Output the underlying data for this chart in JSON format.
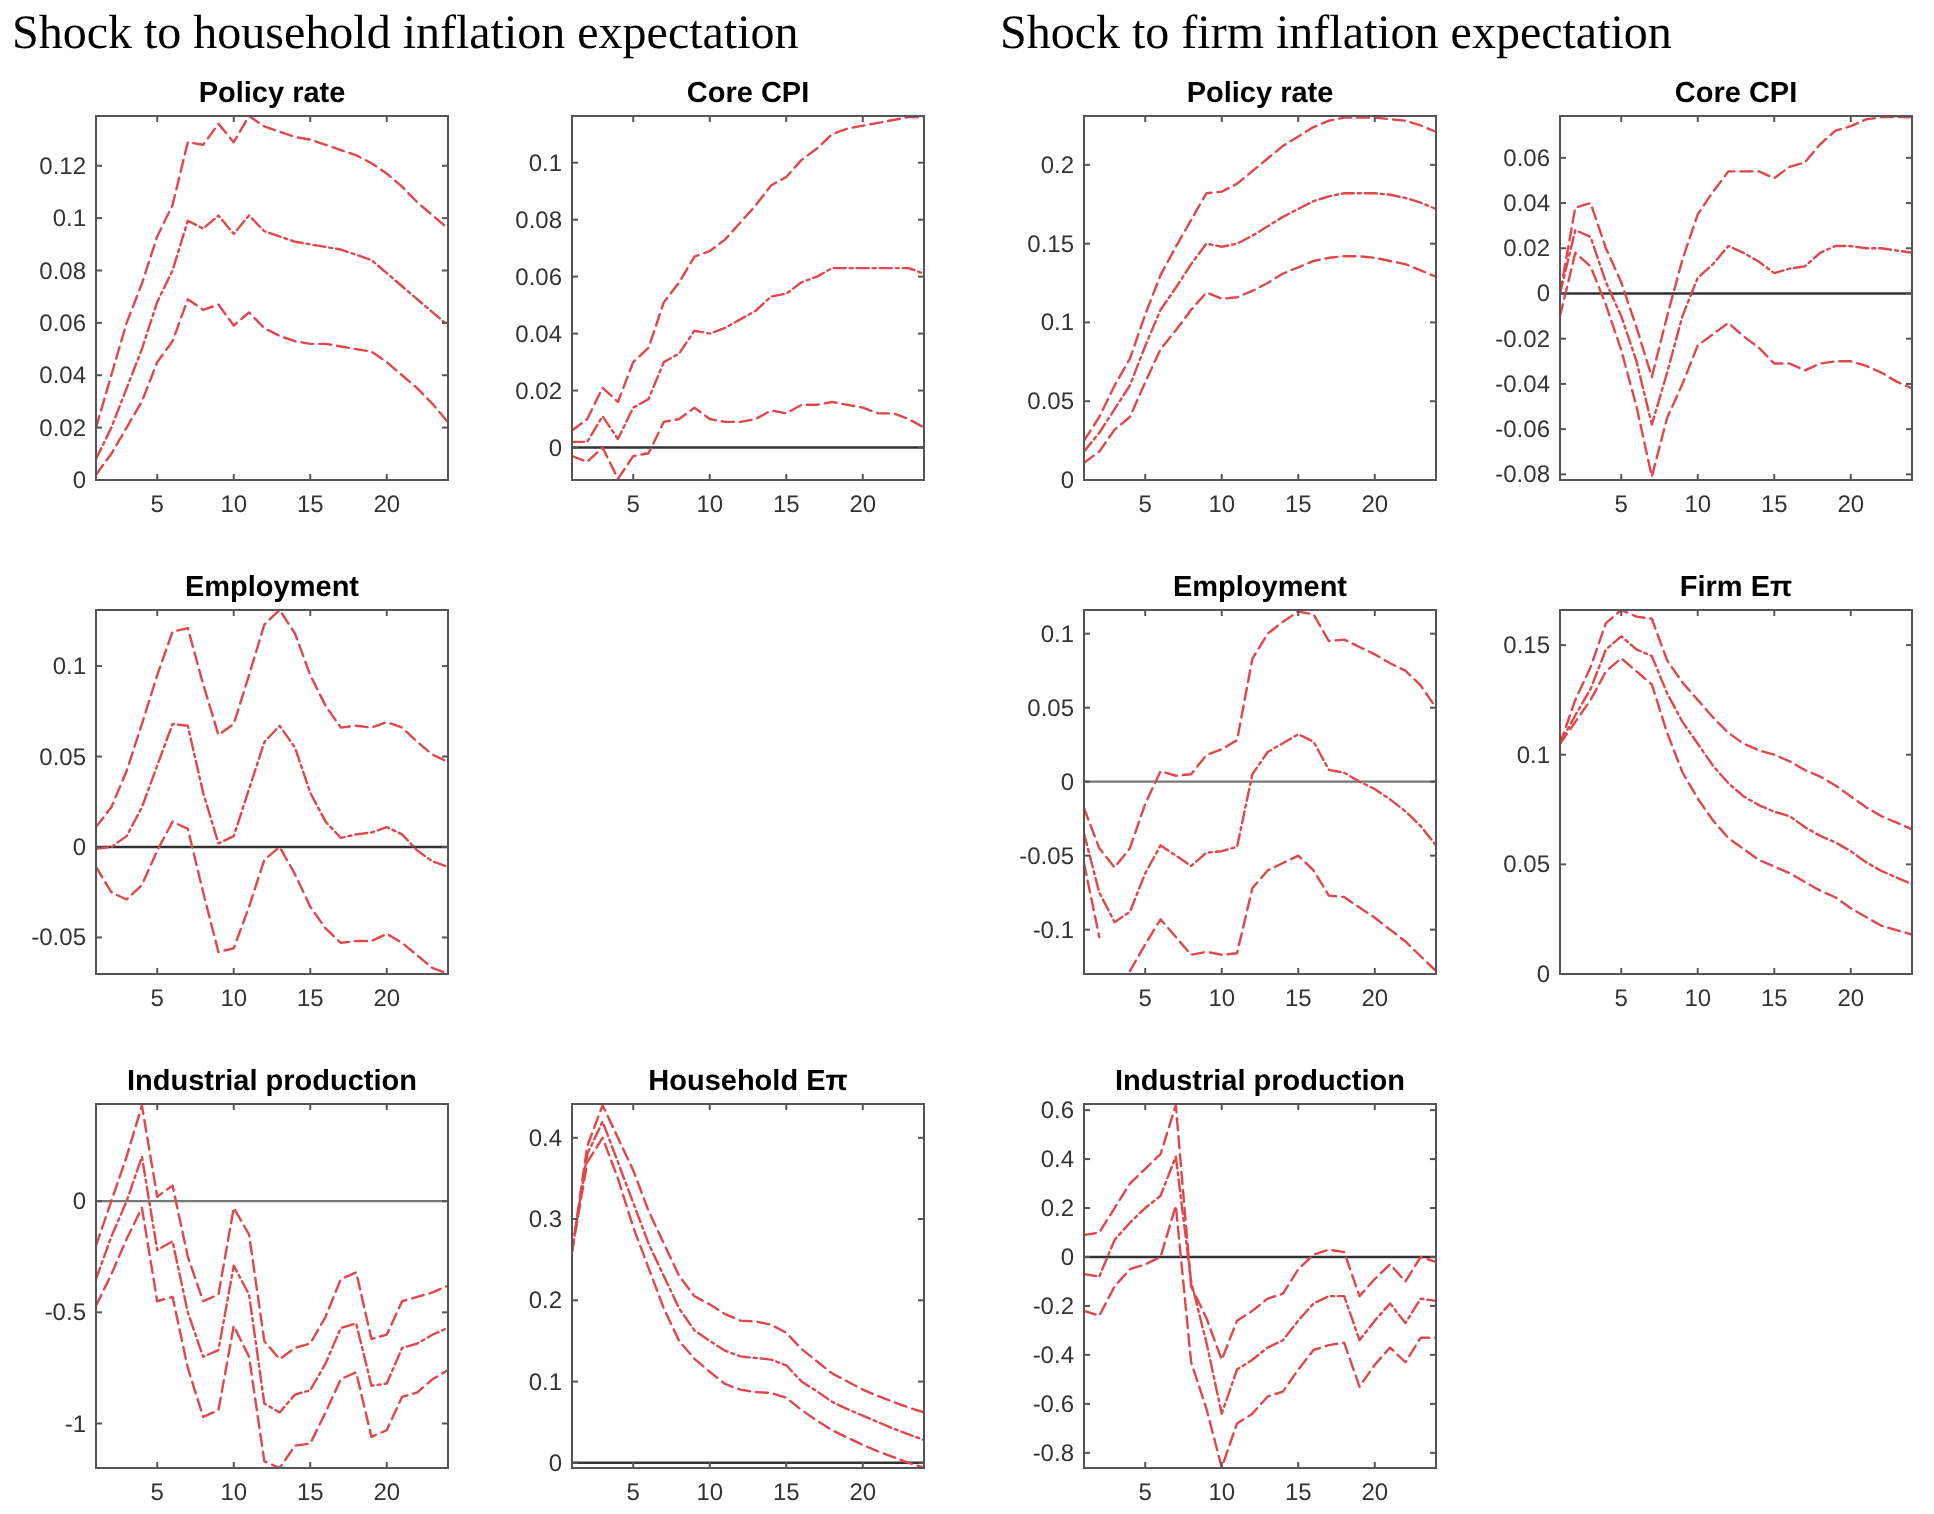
{
  "chart_data": [
    {
      "type": "line",
      "title": "Policy rate",
      "annotations": [
        "Shock to household inflation expectation"
      ],
      "x": [
        1,
        2,
        3,
        4,
        5,
        6,
        7,
        8,
        9,
        10,
        11,
        12,
        13,
        14,
        15,
        16,
        17,
        18,
        19,
        20,
        21,
        22,
        23,
        24
      ],
      "xlim": [
        1,
        24
      ],
      "xticks": [
        5,
        10,
        15,
        20
      ],
      "ylim": [
        0,
        0.139
      ],
      "yticks": [
        0,
        0.02,
        0.04,
        0.06,
        0.08,
        0.1,
        0.12
      ],
      "series": [
        {
          "color": "#e0474c",
          "line_style": "dashed",
          "values": [
            0.02,
            0.04,
            0.06,
            0.075,
            0.093,
            0.105,
            0.129,
            0.128,
            0.136,
            0.129,
            0.139,
            0.135,
            0.133,
            0.131,
            0.13,
            0.128,
            0.126,
            0.124,
            0.121,
            0.117,
            0.112,
            0.106,
            0.101,
            0.096
          ]
        },
        {
          "color": "#e0474c",
          "line_style": "dotted",
          "values": [
            0.008,
            0.02,
            0.035,
            0.05,
            0.068,
            0.08,
            0.099,
            0.096,
            0.101,
            0.094,
            0.101,
            0.095,
            0.093,
            0.091,
            0.09,
            0.089,
            0.088,
            0.086,
            0.084,
            0.079,
            0.074,
            0.069,
            0.064,
            0.059
          ]
        },
        {
          "color": "#e0474c",
          "line_style": "dashed",
          "values": [
            0.002,
            0.01,
            0.02,
            0.03,
            0.045,
            0.053,
            0.069,
            0.065,
            0.067,
            0.059,
            0.064,
            0.058,
            0.055,
            0.053,
            0.052,
            0.052,
            0.051,
            0.05,
            0.049,
            0.045,
            0.04,
            0.035,
            0.029,
            0.022
          ]
        }
      ]
    },
    {
      "type": "line",
      "title": "Core CPI",
      "x": [
        1,
        2,
        3,
        4,
        5,
        6,
        7,
        8,
        9,
        10,
        11,
        12,
        13,
        14,
        15,
        16,
        17,
        18,
        19,
        20,
        21,
        22,
        23,
        24
      ],
      "xlim": [
        1,
        24
      ],
      "xticks": [
        5,
        10,
        15,
        20
      ],
      "ylim": [
        -0.0114,
        0.1164
      ],
      "yticks": [
        0,
        0.02,
        0.04,
        0.06,
        0.08,
        0.1
      ],
      "ref_lines": [
        {
          "axis": "y",
          "value": 0,
          "color": "#333333"
        }
      ],
      "series": [
        {
          "color": "#e0474c",
          "line_style": "dashed",
          "values": [
            0.006,
            0.01,
            0.021,
            0.016,
            0.03,
            0.035,
            0.051,
            0.058,
            0.067,
            0.069,
            0.073,
            0.079,
            0.085,
            0.092,
            0.095,
            0.101,
            0.105,
            0.11,
            0.112,
            0.113,
            0.114,
            0.115,
            0.116,
            0.116
          ]
        },
        {
          "color": "#e0474c",
          "line_style": "dotted",
          "values": [
            0.002,
            0.002,
            0.011,
            0.003,
            0.014,
            0.017,
            0.03,
            0.033,
            0.041,
            0.04,
            0.042,
            0.045,
            0.048,
            0.053,
            0.054,
            0.058,
            0.06,
            0.063,
            0.063,
            0.063,
            0.063,
            0.063,
            0.063,
            0.061
          ]
        },
        {
          "color": "#e0474c",
          "line_style": "dashed",
          "values": [
            -0.003,
            -0.005,
            0,
            -0.011,
            -0.003,
            -0.002,
            0.009,
            0.01,
            0.014,
            0.01,
            0.009,
            0.009,
            0.01,
            0.013,
            0.012,
            0.015,
            0.015,
            0.016,
            0.015,
            0.014,
            0.012,
            0.012,
            0.01,
            0.007
          ]
        }
      ]
    },
    {
      "type": "line",
      "title": "Policy rate",
      "annotations": [
        "Shock to firm inflation expectation"
      ],
      "x": [
        1,
        2,
        3,
        4,
        5,
        6,
        7,
        8,
        9,
        10,
        11,
        12,
        13,
        14,
        15,
        16,
        17,
        18,
        19,
        20,
        21,
        22,
        23,
        24
      ],
      "xlim": [
        1,
        24
      ],
      "xticks": [
        5,
        10,
        15,
        20
      ],
      "ylim": [
        0,
        0.231
      ],
      "yticks": [
        0,
        0.05,
        0.1,
        0.15,
        0.2
      ],
      "series": [
        {
          "color": "#e0474c",
          "line_style": "dashed",
          "values": [
            0.025,
            0.04,
            0.06,
            0.077,
            0.105,
            0.13,
            0.148,
            0.165,
            0.182,
            0.183,
            0.188,
            0.196,
            0.204,
            0.212,
            0.218,
            0.224,
            0.228,
            0.23,
            0.23,
            0.23,
            0.229,
            0.228,
            0.225,
            0.221
          ]
        },
        {
          "color": "#e0474c",
          "line_style": "dotted",
          "values": [
            0.018,
            0.03,
            0.045,
            0.06,
            0.085,
            0.108,
            0.122,
            0.137,
            0.15,
            0.148,
            0.15,
            0.155,
            0.161,
            0.167,
            0.172,
            0.177,
            0.18,
            0.182,
            0.182,
            0.182,
            0.181,
            0.179,
            0.176,
            0.172
          ]
        },
        {
          "color": "#e0474c",
          "line_style": "dashed",
          "values": [
            0.011,
            0.018,
            0.032,
            0.04,
            0.062,
            0.083,
            0.095,
            0.108,
            0.119,
            0.115,
            0.116,
            0.12,
            0.125,
            0.131,
            0.135,
            0.139,
            0.141,
            0.142,
            0.142,
            0.141,
            0.139,
            0.137,
            0.133,
            0.129
          ]
        }
      ]
    },
    {
      "type": "line",
      "title": "Core CPI",
      "x": [
        1,
        2,
        3,
        4,
        5,
        6,
        7,
        8,
        9,
        10,
        11,
        12,
        13,
        14,
        15,
        16,
        17,
        18,
        19,
        20,
        21,
        22,
        23,
        24
      ],
      "xlim": [
        1,
        24
      ],
      "xticks": [
        5,
        10,
        15,
        20
      ],
      "ylim": [
        -0.0825,
        0.0785
      ],
      "yticks": [
        -0.08,
        -0.06,
        -0.04,
        -0.02,
        0,
        0.02,
        0.04,
        0.06
      ],
      "ref_lines": [
        {
          "axis": "y",
          "value": 0,
          "color": "#333333"
        }
      ],
      "series": [
        {
          "color": "#e0474c",
          "line_style": "dashed",
          "values": [
            0,
            0.038,
            0.04,
            0.02,
            0.005,
            -0.015,
            -0.037,
            -0.01,
            0.015,
            0.035,
            0.045,
            0.054,
            0.054,
            0.054,
            0.051,
            0.056,
            0.058,
            0.066,
            0.072,
            0.074,
            0.077,
            0.078,
            0.078,
            0.078
          ]
        },
        {
          "color": "#e0474c",
          "line_style": "dotted",
          "values": [
            0,
            0.028,
            0.025,
            0.005,
            -0.01,
            -0.03,
            -0.058,
            -0.035,
            -0.01,
            0.007,
            0.013,
            0.021,
            0.018,
            0.014,
            0.009,
            0.011,
            0.012,
            0.018,
            0.021,
            0.021,
            0.02,
            0.02,
            0.019,
            0.018
          ]
        },
        {
          "color": "#e0474c",
          "line_style": "dashed",
          "values": [
            -0.01,
            0.018,
            0.012,
            -0.005,
            -0.025,
            -0.05,
            -0.081,
            -0.055,
            -0.04,
            -0.023,
            -0.018,
            -0.013,
            -0.019,
            -0.024,
            -0.031,
            -0.031,
            -0.034,
            -0.031,
            -0.03,
            -0.03,
            -0.032,
            -0.035,
            -0.039,
            -0.042
          ]
        }
      ]
    },
    {
      "type": "line",
      "title": "Employment",
      "x": [
        1,
        2,
        3,
        4,
        5,
        6,
        7,
        8,
        9,
        10,
        11,
        12,
        13,
        14,
        15,
        16,
        17,
        18,
        19,
        20,
        21,
        22,
        23,
        24
      ],
      "xlim": [
        1,
        24
      ],
      "xticks": [
        5,
        10,
        15,
        20
      ],
      "ylim": [
        -0.0702,
        0.131
      ],
      "yticks": [
        -0.05,
        0,
        0.05,
        0.1
      ],
      "ref_lines": [
        {
          "axis": "y",
          "value": 0,
          "color": "#333333"
        }
      ],
      "series": [
        {
          "color": "#e0474c",
          "line_style": "dashed",
          "values": [
            0.011,
            0.022,
            0.042,
            0.068,
            0.095,
            0.119,
            0.121,
            0.09,
            0.062,
            0.068,
            0.095,
            0.123,
            0.131,
            0.118,
            0.095,
            0.078,
            0.066,
            0.067,
            0.066,
            0.069,
            0.066,
            0.058,
            0.051,
            0.047
          ]
        },
        {
          "color": "#e0474c",
          "line_style": "dotted",
          "values": [
            -0.001,
            0,
            0.006,
            0.022,
            0.045,
            0.068,
            0.067,
            0.03,
            0.002,
            0.006,
            0.032,
            0.058,
            0.067,
            0.055,
            0.03,
            0.014,
            0.005,
            0.007,
            0.008,
            0.011,
            0.007,
            -0.002,
            -0.008,
            -0.011
          ]
        },
        {
          "color": "#e0474c",
          "line_style": "dashed",
          "values": [
            -0.011,
            -0.025,
            -0.029,
            -0.021,
            -0.002,
            0.014,
            0.01,
            -0.025,
            -0.058,
            -0.056,
            -0.033,
            -0.007,
            0,
            -0.015,
            -0.033,
            -0.045,
            -0.053,
            -0.052,
            -0.052,
            -0.048,
            -0.053,
            -0.06,
            -0.067,
            -0.07
          ]
        }
      ]
    },
    {
      "type": "line",
      "title": "Employment",
      "x": [
        1,
        2,
        3,
        4,
        5,
        6,
        7,
        8,
        9,
        10,
        11,
        12,
        13,
        14,
        15,
        16,
        17,
        18,
        19,
        20,
        21,
        22,
        23,
        24
      ],
      "xlim": [
        1,
        24
      ],
      "xticks": [
        5,
        10,
        15,
        20
      ],
      "ylim": [
        -0.13,
        0.116
      ],
      "yticks": [
        -0.1,
        -0.05,
        0,
        0.05,
        0.1
      ],
      "ref_lines": [
        {
          "axis": "y",
          "value": 0,
          "color": "#777777"
        }
      ],
      "series": [
        {
          "color": "#e0474c",
          "line_style": "dashed",
          "values": [
            -0.018,
            -0.045,
            -0.058,
            -0.045,
            -0.015,
            0.007,
            0.004,
            0.005,
            0.018,
            0.022,
            0.028,
            0.083,
            0.1,
            0.108,
            0.115,
            0.113,
            0.095,
            0.096,
            0.091,
            0.086,
            0.08,
            0.075,
            0.065,
            0.05
          ]
        },
        {
          "color": "#e0474c",
          "line_style": "dotted",
          "values": [
            -0.035,
            -0.075,
            -0.095,
            -0.088,
            -0.062,
            -0.043,
            -0.05,
            -0.057,
            -0.048,
            -0.047,
            -0.044,
            0.005,
            0.02,
            0.026,
            0.032,
            0.027,
            0.008,
            0.006,
            0,
            -0.005,
            -0.012,
            -0.02,
            -0.03,
            -0.043
          ]
        },
        {
          "color": "#e0474c",
          "line_style": "dashed",
          "values": [
            -0.055,
            -0.105,
            null,
            -0.128,
            -0.11,
            -0.093,
            -0.105,
            -0.117,
            -0.115,
            -0.117,
            -0.116,
            -0.072,
            -0.06,
            -0.055,
            -0.05,
            -0.06,
            -0.077,
            -0.078,
            -0.085,
            -0.092,
            -0.1,
            -0.108,
            -0.118,
            -0.128
          ]
        }
      ]
    },
    {
      "type": "line",
      "title": "Firm Eπ",
      "x": [
        1,
        2,
        3,
        4,
        5,
        6,
        7,
        8,
        9,
        10,
        11,
        12,
        13,
        14,
        15,
        16,
        17,
        18,
        19,
        20,
        21,
        22,
        23,
        24
      ],
      "xlim": [
        1,
        24
      ],
      "xticks": [
        5,
        10,
        15,
        20
      ],
      "ylim": [
        0,
        0.166
      ],
      "yticks": [
        0,
        0.05,
        0.1,
        0.15
      ],
      "series": [
        {
          "color": "#e0474c",
          "line_style": "dashed",
          "values": [
            0.105,
            0.125,
            0.14,
            0.16,
            0.166,
            0.163,
            0.162,
            0.143,
            0.133,
            0.125,
            0.117,
            0.11,
            0.105,
            0.102,
            0.1,
            0.097,
            0.093,
            0.09,
            0.086,
            0.081,
            0.076,
            0.072,
            0.069,
            0.066
          ]
        },
        {
          "color": "#e0474c",
          "line_style": "dotted",
          "values": [
            0.105,
            0.118,
            0.13,
            0.148,
            0.154,
            0.148,
            0.145,
            0.128,
            0.115,
            0.105,
            0.095,
            0.087,
            0.081,
            0.077,
            0.074,
            0.072,
            0.067,
            0.063,
            0.06,
            0.056,
            0.051,
            0.047,
            0.044,
            0.041
          ]
        },
        {
          "color": "#e0474c",
          "line_style": "dashed",
          "values": [
            0.105,
            0.115,
            0.125,
            0.138,
            0.144,
            0.138,
            0.132,
            0.11,
            0.092,
            0.08,
            0.07,
            0.062,
            0.057,
            0.052,
            0.049,
            0.046,
            0.042,
            0.038,
            0.035,
            0.03,
            0.026,
            0.022,
            0.02,
            0.018
          ]
        }
      ]
    },
    {
      "type": "line",
      "title": "Industrial production",
      "x": [
        1,
        2,
        3,
        4,
        5,
        6,
        7,
        8,
        9,
        10,
        11,
        12,
        13,
        14,
        15,
        16,
        17,
        18,
        19,
        20,
        21,
        22,
        23,
        24
      ],
      "xlim": [
        1,
        24
      ],
      "xticks": [
        5,
        10,
        15,
        20
      ],
      "ylim": [
        -1.2,
        0.437
      ],
      "yticks": [
        -1,
        -0.5,
        0
      ],
      "ref_lines": [
        {
          "axis": "y",
          "value": 0,
          "color": "#777777"
        }
      ],
      "series": [
        {
          "color": "#e0474c",
          "line_style": "dashed",
          "values": [
            -0.2,
            0,
            0.2,
            0.43,
            0.02,
            0.07,
            -0.25,
            -0.45,
            -0.42,
            -0.03,
            -0.15,
            -0.63,
            -0.71,
            -0.66,
            -0.64,
            -0.52,
            -0.35,
            -0.32,
            -0.62,
            -0.6,
            -0.45,
            -0.43,
            -0.41,
            -0.38
          ]
        },
        {
          "color": "#e0474c",
          "line_style": "dotted",
          "values": [
            -0.35,
            -0.16,
            0,
            0.2,
            -0.22,
            -0.18,
            -0.5,
            -0.7,
            -0.67,
            -0.29,
            -0.42,
            -0.91,
            -0.95,
            -0.87,
            -0.85,
            -0.73,
            -0.57,
            -0.55,
            -0.83,
            -0.82,
            -0.66,
            -0.64,
            -0.6,
            -0.57
          ]
        },
        {
          "color": "#e0474c",
          "line_style": "dashed",
          "values": [
            -0.47,
            -0.33,
            -0.17,
            -0.03,
            -0.45,
            -0.43,
            -0.75,
            -0.97,
            -0.94,
            -0.56,
            -0.7,
            -1.17,
            -1.2,
            -1.1,
            -1.09,
            -0.95,
            -0.8,
            -0.77,
            -1.06,
            -1.03,
            -0.88,
            -0.86,
            -0.8,
            -0.76
          ]
        }
      ]
    },
    {
      "type": "line",
      "title": "Household Eπ",
      "x": [
        1,
        2,
        3,
        4,
        5,
        6,
        7,
        8,
        9,
        10,
        11,
        12,
        13,
        14,
        15,
        16,
        17,
        18,
        19,
        20,
        21,
        22,
        23,
        24
      ],
      "xlim": [
        1,
        24
      ],
      "xticks": [
        5,
        10,
        15,
        20
      ],
      "ylim": [
        -0.0064,
        0.4416
      ],
      "yticks": [
        0,
        0.1,
        0.2,
        0.3,
        0.4
      ],
      "ref_lines": [
        {
          "axis": "y",
          "value": 0,
          "color": "#333333"
        }
      ],
      "series": [
        {
          "color": "#e0474c",
          "line_style": "dashed",
          "values": [
            0.26,
            0.39,
            0.44,
            0.4,
            0.36,
            0.31,
            0.27,
            0.23,
            0.205,
            0.195,
            0.183,
            0.175,
            0.174,
            0.17,
            0.16,
            0.14,
            0.125,
            0.11,
            0.1,
            0.09,
            0.082,
            0.075,
            0.068,
            0.062
          ]
        },
        {
          "color": "#e0474c",
          "line_style": "dotted",
          "values": [
            0.26,
            0.38,
            0.42,
            0.37,
            0.32,
            0.27,
            0.23,
            0.19,
            0.163,
            0.15,
            0.138,
            0.131,
            0.129,
            0.127,
            0.12,
            0.1,
            0.088,
            0.075,
            0.066,
            0.058,
            0.05,
            0.042,
            0.035,
            0.028
          ]
        },
        {
          "color": "#e0474c",
          "line_style": "dashed",
          "values": [
            0.26,
            0.37,
            0.4,
            0.35,
            0.29,
            0.24,
            0.19,
            0.15,
            0.128,
            0.112,
            0.097,
            0.09,
            0.087,
            0.086,
            0.08,
            0.065,
            0.052,
            0.04,
            0.031,
            0.022,
            0.014,
            0.007,
            0,
            -0.006
          ]
        }
      ]
    },
    {
      "type": "line",
      "title": "Industrial production",
      "x": [
        1,
        2,
        3,
        4,
        5,
        6,
        7,
        8,
        9,
        10,
        11,
        12,
        13,
        14,
        15,
        16,
        17,
        18,
        19,
        20,
        21,
        22,
        23,
        24
      ],
      "xlim": [
        1,
        24
      ],
      "xticks": [
        5,
        10,
        15,
        20
      ],
      "ylim": [
        -0.862,
        0.625
      ],
      "yticks": [
        -0.8,
        -0.6,
        -0.4,
        -0.2,
        0,
        0.2,
        0.4,
        0.6
      ],
      "ref_lines": [
        {
          "axis": "y",
          "value": 0,
          "color": "#333333"
        }
      ],
      "series": [
        {
          "color": "#e0474c",
          "line_style": "dashed",
          "values": [
            0.09,
            0.1,
            0.2,
            0.3,
            0.36,
            0.42,
            0.62,
            -0.12,
            -0.25,
            -0.42,
            -0.26,
            -0.22,
            -0.17,
            -0.15,
            -0.05,
            0.01,
            0.03,
            0.02,
            -0.16,
            -0.09,
            -0.03,
            -0.1,
            0,
            -0.02
          ]
        },
        {
          "color": "#e0474c",
          "line_style": "dotted",
          "values": [
            -0.07,
            -0.08,
            0.07,
            0.14,
            0.2,
            0.25,
            0.41,
            -0.1,
            -0.35,
            -0.64,
            -0.46,
            -0.42,
            -0.37,
            -0.34,
            -0.26,
            -0.19,
            -0.16,
            -0.16,
            -0.34,
            -0.26,
            -0.19,
            -0.27,
            -0.17,
            -0.18
          ]
        },
        {
          "color": "#e0474c",
          "line_style": "dashed",
          "values": [
            -0.22,
            -0.24,
            -0.12,
            -0.05,
            -0.03,
            0,
            0.21,
            -0.43,
            -0.62,
            -0.86,
            -0.68,
            -0.64,
            -0.57,
            -0.55,
            -0.46,
            -0.38,
            -0.36,
            -0.35,
            -0.53,
            -0.44,
            -0.37,
            -0.43,
            -0.33,
            -0.33
          ]
        }
      ]
    }
  ]
}
